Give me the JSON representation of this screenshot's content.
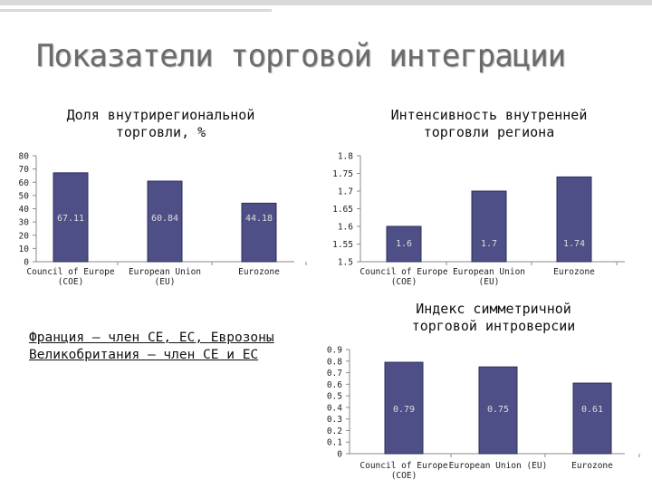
{
  "slide": {
    "title": "Показатели торговой интеграции",
    "note_lines": [
      "Франция – член СЕ, ЕС, Еврозоны",
      "Великобритания – член СЕ и ЕС"
    ]
  },
  "colors": {
    "bar_fill": "#4d4f86",
    "bar_edge": "#2d2f5e",
    "title_text": "#6b6b6b",
    "label_text": "#dddddd"
  },
  "chart_data": [
    {
      "type": "bar",
      "title": "Доля внутрирегиональной торговли, %",
      "categories": [
        "Council of Europe (COE)",
        "European Union (EU)",
        "Eurozone"
      ],
      "category_lines": [
        [
          "Council of Europe",
          "(COE)"
        ],
        [
          "European Union",
          "(EU)"
        ],
        [
          "Eurozone"
        ]
      ],
      "values": [
        67.11,
        60.84,
        44.18
      ],
      "value_labels": [
        "67.11",
        "60.84",
        "44.18"
      ],
      "ylim": [
        0,
        80
      ],
      "yticks": [
        0,
        10,
        20,
        30,
        40,
        50,
        60,
        70,
        80
      ],
      "ytick_labels": [
        "0",
        "10",
        "20",
        "30",
        "40",
        "50",
        "60",
        "70",
        "80"
      ],
      "grid": false,
      "legend": "none"
    },
    {
      "type": "bar",
      "title": "Интенсивность внутренней торговли региона",
      "categories": [
        "Council of Europe (COE)",
        "European Union (EU)",
        "Eurozone"
      ],
      "category_lines": [
        [
          "Council of Europe",
          "(COE)"
        ],
        [
          "European Union",
          "(EU)"
        ],
        [
          "Eurozone"
        ]
      ],
      "values": [
        1.6,
        1.7,
        1.74
      ],
      "value_labels": [
        "1.6",
        "1.7",
        "1.74"
      ],
      "ylim": [
        1.5,
        1.8
      ],
      "yticks": [
        1.5,
        1.55,
        1.6,
        1.65,
        1.7,
        1.75,
        1.8
      ],
      "ytick_labels": [
        "1.5",
        "1.55",
        "1.6",
        "1.65",
        "1.7",
        "1.75",
        "1.8"
      ],
      "grid": false,
      "legend": "none"
    },
    {
      "type": "bar",
      "title": "Индекс симметричной торговой интроверсии",
      "categories": [
        "Council of Europe (COE)",
        "European Union (EU)",
        "Eurozone"
      ],
      "category_lines": [
        [
          "Council of Europe",
          "(COE)"
        ],
        [
          "European Union (EU)"
        ],
        [
          "Eurozone"
        ]
      ],
      "values": [
        0.79,
        0.75,
        0.61
      ],
      "value_labels": [
        "0.79",
        "0.75",
        "0.61"
      ],
      "ylim": [
        0,
        0.9
      ],
      "yticks": [
        0,
        0.1,
        0.2,
        0.3,
        0.4,
        0.5,
        0.6,
        0.7,
        0.8,
        0.9
      ],
      "ytick_labels": [
        "0",
        "0.1",
        "0.2",
        "0.3",
        "0.4",
        "0.5",
        "0.6",
        "0.7",
        "0.8",
        "0.9"
      ],
      "grid": false,
      "legend": "none"
    }
  ]
}
